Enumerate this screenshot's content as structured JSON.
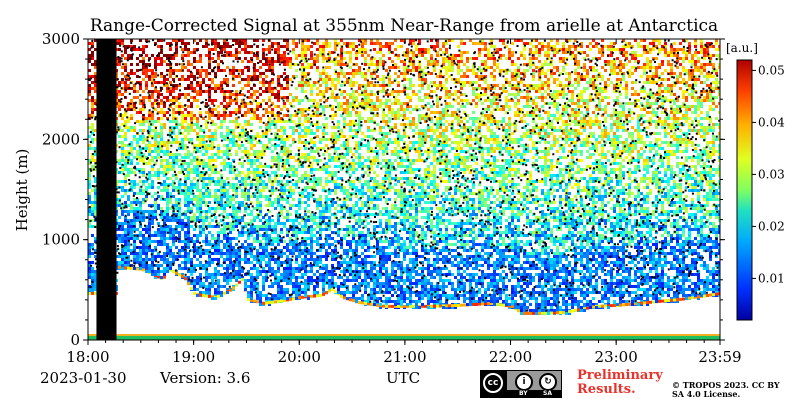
{
  "chart_data": {
    "type": "heatmap",
    "title": "Range-Corrected Signal at 355nm Near-Range from arielle at Antarctica",
    "ylabel": "Height (m)",
    "xlabel": "UTC",
    "x_ticks": [
      "18:00",
      "19:00",
      "20:00",
      "21:00",
      "22:00",
      "23:00",
      "23:59"
    ],
    "x_tick_hours": [
      18,
      19,
      20,
      21,
      22,
      23,
      23.983
    ],
    "xlim_hours": [
      18,
      23.983
    ],
    "y_ticks": [
      "0",
      "1000",
      "2000",
      "3000"
    ],
    "y_tick_values": [
      0,
      1000,
      2000,
      3000
    ],
    "ylim": [
      0,
      3000
    ],
    "colorbar": {
      "unit_label": "[a.u.]",
      "ticks": [
        "0.01",
        "0.02",
        "0.03",
        "0.04",
        "0.05"
      ],
      "tick_values": [
        0.01,
        0.02,
        0.03,
        0.04,
        0.05
      ],
      "range": [
        0.002,
        0.052
      ],
      "colormap": "jet"
    },
    "no_data_intervals_hours": [
      [
        18.08,
        18.27
      ]
    ],
    "saturated_lowest_level_m": 40,
    "cloud_base_height_m": [
      [
        18.27,
        720
      ],
      [
        18.5,
        700
      ],
      [
        18.6,
        650
      ],
      [
        18.7,
        600
      ],
      [
        18.75,
        700
      ],
      [
        18.9,
        620
      ],
      [
        19.0,
        450
      ],
      [
        19.2,
        420
      ],
      [
        19.35,
        500
      ],
      [
        19.45,
        600
      ],
      [
        19.5,
        400
      ],
      [
        19.65,
        360
      ],
      [
        19.8,
        380
      ],
      [
        20.0,
        420
      ],
      [
        20.2,
        440
      ],
      [
        20.3,
        500
      ],
      [
        20.4,
        420
      ],
      [
        20.55,
        370
      ],
      [
        20.8,
        330
      ],
      [
        21.0,
        330
      ],
      [
        21.2,
        330
      ],
      [
        21.5,
        340
      ],
      [
        21.8,
        360
      ],
      [
        22.0,
        330
      ],
      [
        22.1,
        260
      ],
      [
        22.3,
        260
      ],
      [
        22.5,
        270
      ],
      [
        22.8,
        330
      ],
      [
        23.0,
        340
      ],
      [
        23.3,
        370
      ],
      [
        23.6,
        400
      ],
      [
        23.8,
        430
      ],
      [
        23.983,
        460
      ]
    ]
  },
  "footer": {
    "date": "2023-01-30",
    "version": "Version: 3.6",
    "preliminary": "Preliminary Results.",
    "copyright": "© TROPOS 2023. CC BY SA 4.0 License.",
    "license_badge": {
      "main": "cc",
      "by_icon": "person-icon",
      "sa_icon": "share-alike-icon",
      "by_label": "BY",
      "sa_label": "SA"
    }
  }
}
